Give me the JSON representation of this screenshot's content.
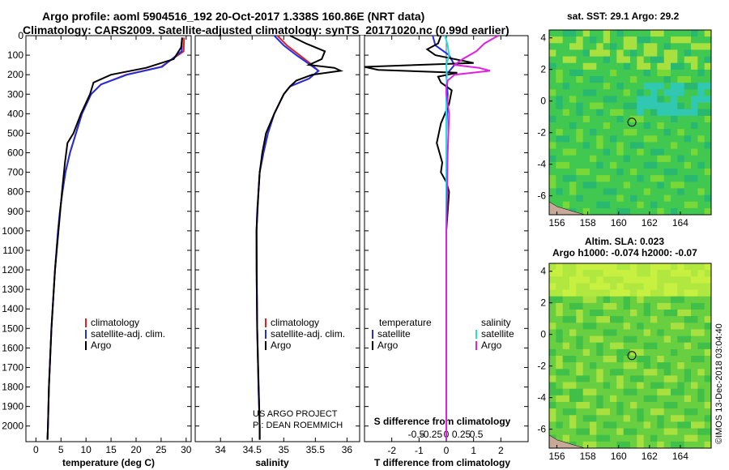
{
  "title_line1": "Argo profile: aoml 5904516_192 20-Oct-2017 1.338S 160.86E (NRT data)",
  "title_line2": "Climatology: CARS2009. Satellite-adjusted climatology: synTS_20171020.nc (0.99d earlier)",
  "credit_line1": "US ARGO PROJECT",
  "credit_line2": "PI: DEAN ROEMMICH",
  "imos_stamp": "©IMOS 13-Dec-2018 03:04:40",
  "sst_title": "sat. SST: 29.1 Argo: 29.2",
  "sla_title1": "Altim. SLA: 0.023",
  "sla_title2": "Argo h1000: -0.074 h2000: -0.07",
  "colors": {
    "climatology": "#e02020",
    "satellite": "#2030e0",
    "argo": "#000000",
    "sal_sat": "#20e0e0",
    "sal_argo": "#e020e0"
  },
  "chart_data": [
    {
      "type": "line",
      "name": "temperature-panel",
      "xlabel": "temperature (deg C)",
      "xlim": [
        -2,
        31
      ],
      "xticks": [
        0,
        5,
        10,
        15,
        20,
        25,
        30
      ],
      "ylim": [
        2080,
        0
      ],
      "yticks": [
        0,
        100,
        200,
        300,
        400,
        500,
        600,
        700,
        800,
        900,
        1000,
        1100,
        1200,
        1300,
        1400,
        1500,
        1600,
        1700,
        1800,
        1900,
        2000
      ],
      "legend": [
        "climatology",
        "satellite-adj. clim.",
        "Argo"
      ],
      "series": [
        {
          "name": "climatology",
          "depth": [
            10,
            80,
            160,
            200,
            250,
            300,
            400,
            500,
            600,
            700,
            800,
            900,
            1000,
            1200,
            1500,
            1800,
            2000,
            2070
          ],
          "values": [
            29.6,
            29.5,
            25,
            18,
            13,
            11,
            9.2,
            8,
            6.8,
            5.9,
            5.3,
            4.8,
            4.4,
            3.8,
            3.1,
            2.6,
            2.4,
            2.3
          ]
        },
        {
          "name": "satellite-adj. clim.",
          "depth": [
            10,
            80,
            160,
            200,
            250,
            300,
            400,
            500,
            600,
            700,
            800,
            900,
            1000,
            1200,
            1500,
            1800,
            2000,
            2070
          ],
          "values": [
            29.2,
            29.1,
            25.2,
            18.2,
            13,
            11,
            9.2,
            8,
            6.8,
            5.9,
            5.3,
            4.8,
            4.4,
            3.8,
            3.1,
            2.6,
            2.4,
            2.3
          ]
        },
        {
          "name": "Argo",
          "depth": [
            10,
            60,
            120,
            165,
            200,
            240,
            300,
            400,
            500,
            550,
            650,
            800,
            1000,
            1200,
            1500,
            1800,
            2000,
            2070
          ],
          "values": [
            29.2,
            29,
            27.5,
            22,
            15,
            11.5,
            10.8,
            9,
            7.5,
            6.3,
            5.8,
            5.2,
            4.5,
            3.8,
            3.1,
            2.6,
            2.4,
            2.3
          ]
        }
      ]
    },
    {
      "type": "line",
      "name": "salinity-panel",
      "xlabel": "salinity",
      "xlim": [
        33.6,
        36.2
      ],
      "xticks": [
        34,
        34.5,
        35,
        35.5,
        36
      ],
      "ylim": [
        2080,
        0
      ],
      "legend": [
        "climatology",
        "satellite-adj. clim.",
        "Argo"
      ],
      "series": [
        {
          "name": "climatology",
          "depth": [
            0,
            50,
            100,
            150,
            180,
            220,
            260,
            300,
            400,
            500,
            600,
            700,
            800,
            900,
            1000,
            1200,
            1500,
            1800,
            2000,
            2070
          ],
          "values": [
            34.9,
            35.05,
            35.25,
            35.45,
            35.55,
            35.4,
            35.1,
            35.0,
            34.85,
            34.75,
            34.68,
            34.62,
            34.6,
            34.58,
            34.57,
            34.57,
            34.58,
            34.6,
            34.62,
            34.62
          ]
        },
        {
          "name": "satellite-adj. clim.",
          "depth": [
            0,
            50,
            100,
            150,
            180,
            220,
            260,
            300,
            400,
            500,
            600,
            700,
            800,
            900,
            1000,
            1200,
            1500,
            1800,
            2000,
            2070
          ],
          "values": [
            34.85,
            35.0,
            35.2,
            35.42,
            35.55,
            35.4,
            35.1,
            35.0,
            34.85,
            34.75,
            34.68,
            34.62,
            34.6,
            34.58,
            34.57,
            34.57,
            34.58,
            34.6,
            34.62,
            34.62
          ]
        },
        {
          "name": "Argo",
          "depth": [
            0,
            40,
            80,
            120,
            150,
            165,
            180,
            200,
            230,
            260,
            300,
            400,
            500,
            600,
            700,
            800,
            1000,
            1500,
            2000,
            2070
          ],
          "values": [
            35.1,
            35.35,
            35.65,
            35.6,
            35.4,
            35.8,
            35.9,
            35.45,
            35.2,
            35.1,
            35.0,
            34.85,
            34.72,
            34.66,
            34.62,
            34.6,
            34.57,
            34.58,
            34.62,
            34.62
          ]
        }
      ]
    },
    {
      "type": "line",
      "name": "difference-panel",
      "xlabel": "T difference from climatology",
      "xlim": [
        -3,
        3
      ],
      "xticks": [
        -2,
        -1,
        0,
        1,
        2
      ],
      "s_axis_label": "S difference from climatology",
      "s_ticks": [
        "-0.5",
        "-0.25",
        "0",
        "0.25",
        "0.5"
      ],
      "ylim": [
        2080,
        0
      ],
      "legend_t": [
        "temperature",
        "satellite",
        "Argo"
      ],
      "legend_s": [
        "salinity",
        "satellite",
        "Argo"
      ],
      "series": [
        {
          "name": "T satellite",
          "depth": [
            0,
            50,
            100,
            150,
            200,
            300,
            500,
            800,
            1200,
            1600,
            2070
          ],
          "values": [
            -0.5,
            -0.4,
            0.1,
            0.3,
            0.0,
            0.05,
            0.0,
            0.0,
            0.0,
            0.0,
            0.0
          ]
        },
        {
          "name": "T Argo",
          "depth": [
            0,
            40,
            70,
            100,
            140,
            160,
            175,
            190,
            210,
            240,
            280,
            350,
            450,
            550,
            600,
            650,
            700,
            750,
            800,
            900,
            1000,
            1500,
            2070
          ],
          "values": [
            -0.2,
            -0.3,
            -0.7,
            -0.4,
            1.0,
            -3.0,
            -2.5,
            0.4,
            -0.3,
            -0.2,
            0.2,
            0.1,
            -0.2,
            -0.35,
            -0.25,
            -0.15,
            -0.2,
            0.0,
            0.1,
            0.05,
            0.0,
            0.0,
            0.0
          ]
        },
        {
          "name": "S satellite",
          "depth": [
            0,
            50,
            100,
            150,
            200,
            300,
            500,
            800,
            1200,
            1600,
            2070
          ],
          "values": [
            -0.05,
            0.05,
            0.1,
            0.0,
            0.02,
            0.0,
            0.0,
            0.0,
            0.0,
            0.0,
            0.0
          ]
        },
        {
          "name": "S Argo",
          "depth": [
            0,
            40,
            80,
            120,
            150,
            165,
            180,
            200,
            230,
            260,
            300,
            400,
            600,
            800,
            1000,
            1500,
            2070
          ],
          "values": [
            1.9,
            1.4,
            1.1,
            0.6,
            0.3,
            1.2,
            1.6,
            0.3,
            0.05,
            0.0,
            0.0,
            0.1,
            0.05,
            0.03,
            0.0,
            0.0,
            0.0
          ]
        }
      ]
    },
    {
      "type": "heatmap",
      "name": "sst-map",
      "title": "sat. SST: 29.1 Argo: 29.2",
      "xticks": [
        156,
        158,
        160,
        162,
        164
      ],
      "yticks": [
        4,
        2,
        0,
        -2,
        -4,
        -6
      ],
      "xlim": [
        155.5,
        166
      ],
      "ylim": [
        -7.2,
        4.5
      ],
      "marker": {
        "lon": 160.86,
        "lat": -1.338
      }
    },
    {
      "type": "heatmap",
      "name": "sla-map",
      "title": "Altim. SLA: 0.023",
      "xticks": [
        156,
        158,
        160,
        162,
        164
      ],
      "yticks": [
        4,
        2,
        0,
        -2,
        -4,
        -6
      ],
      "xlim": [
        155.5,
        166
      ],
      "ylim": [
        -7.2,
        4.5
      ],
      "marker": {
        "lon": 160.86,
        "lat": -1.338
      }
    }
  ]
}
